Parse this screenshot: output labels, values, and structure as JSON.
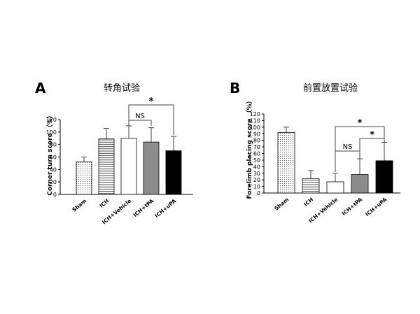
{
  "chart_data": [
    {
      "type": "bar",
      "panel_label": "A",
      "title": "转角试验",
      "xlabel": "",
      "ylabel": "Corner turn score （%）",
      "ylim": [
        0,
        120
      ],
      "yticks": [
        "0",
        "20",
        "40",
        "60",
        "80",
        "100",
        "120"
      ],
      "categories": [
        "Sham",
        "ICH",
        "ICH+Vehicle",
        "ICH+tPA",
        "ICH+uPA"
      ],
      "values": [
        52,
        89,
        90,
        84,
        70
      ],
      "errors": [
        8,
        17,
        20,
        23,
        23
      ],
      "fills": [
        "dots",
        "hlines",
        "white",
        "gray",
        "black"
      ],
      "comparisons": [
        {
          "between": [
            "ICH+Vehicle",
            "ICH+tPA"
          ],
          "label": "NS"
        },
        {
          "between": [
            "ICH+Vehicle",
            "ICH+uPA"
          ],
          "label": "*"
        }
      ],
      "grid": false
    },
    {
      "type": "bar",
      "panel_label": "B",
      "title": "前置放置试验",
      "xlabel": "",
      "ylabel": "Forelimb placing score （%）",
      "ylim": [
        0,
        120
      ],
      "yticks": [
        "0",
        "10",
        "20",
        "30",
        "40",
        "50",
        "60",
        "70",
        "80",
        "90",
        "100",
        "110",
        "120"
      ],
      "categories": [
        "Sham",
        "ICH",
        "ICH+Vehicle",
        "ICH+tPA",
        "ICH+uPA"
      ],
      "values": [
        92,
        22,
        17,
        28,
        49
      ],
      "errors": [
        8,
        12,
        13,
        24,
        28
      ],
      "fills": [
        "dots",
        "hlines",
        "white",
        "gray",
        "black"
      ],
      "comparisons": [
        {
          "between": [
            "ICH+Vehicle",
            "ICH+tPA"
          ],
          "label": "NS"
        },
        {
          "between": [
            "ICH+tPA",
            "ICH+uPA"
          ],
          "label": "*"
        },
        {
          "between": [
            "ICH+Vehicle",
            "ICH+uPA"
          ],
          "label": "*"
        }
      ],
      "grid": false
    }
  ]
}
